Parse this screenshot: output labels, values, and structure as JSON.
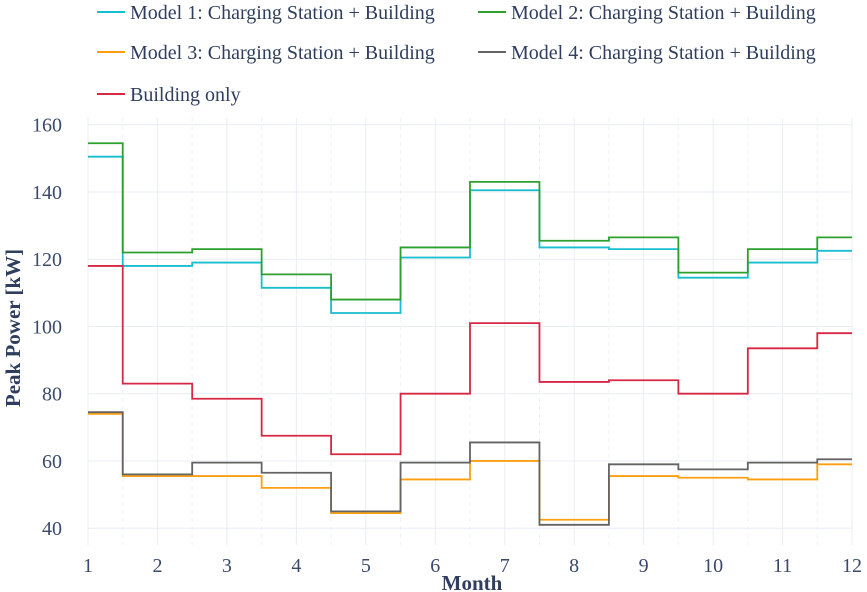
{
  "chart_data": {
    "type": "line",
    "line_shape": "step (horizontal-vertical-horizontal, centered on month)",
    "xlabel": "Month",
    "ylabel": "Peak Power [kW]",
    "xlim": [
      1,
      12
    ],
    "ylim": [
      35,
      162
    ],
    "x_ticks": [
      1,
      2,
      3,
      4,
      5,
      6,
      7,
      8,
      9,
      10,
      11,
      12
    ],
    "y_ticks": [
      40,
      60,
      80,
      100,
      120,
      140,
      160
    ],
    "grid": true,
    "legend_position": "top",
    "x": [
      1,
      2,
      3,
      4,
      5,
      6,
      7,
      8,
      9,
      10,
      11,
      12
    ],
    "series": [
      {
        "name": "Model 1: Charging Station + Building",
        "color": "#17becf",
        "values": [
          150.5,
          118,
          119,
          111.5,
          104,
          120.5,
          140.5,
          123.5,
          123,
          114.5,
          119,
          122.5
        ]
      },
      {
        "name": "Model 2: Charging Station + Building",
        "color": "#2ca02c",
        "values": [
          154.5,
          122,
          123,
          115.5,
          108,
          123.5,
          143,
          125.5,
          126.5,
          116,
          123,
          126.5
        ]
      },
      {
        "name": "Model 3: Charging Station + Building",
        "color": "#ff9f10",
        "values": [
          74,
          55.5,
          55.5,
          52,
          44.5,
          54.5,
          60,
          42.5,
          55.5,
          55,
          54.5,
          59
        ]
      },
      {
        "name": "Model 4: Charging Station + Building",
        "color": "#636363",
        "values": [
          74.5,
          56,
          59.5,
          56.5,
          45,
          59.5,
          65.5,
          41,
          59,
          57.5,
          59.5,
          60.5
        ]
      },
      {
        "name": "Building only",
        "color": "#d62744",
        "values": [
          118,
          83,
          78.5,
          67.5,
          62,
          80,
          101,
          83.5,
          84,
          80,
          93.5,
          98
        ]
      }
    ]
  }
}
